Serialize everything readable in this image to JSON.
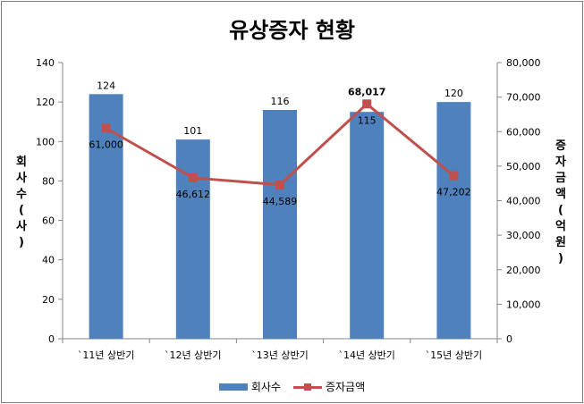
{
  "chart_data": {
    "type": "bar",
    "title": "유상증자 현황",
    "categories": [
      "`11년 상반기",
      "`12년 상반기",
      "`13년 상반기",
      "`14년 상반기",
      "`15년 상반기"
    ],
    "series": [
      {
        "name": "회사수",
        "type": "bar",
        "axis": "left",
        "values": [
          124,
          101,
          116,
          115,
          120
        ],
        "value_labels": [
          "124",
          "101",
          "116",
          "115",
          "120"
        ],
        "color": "#4f81bd"
      },
      {
        "name": "증자금액",
        "type": "line",
        "axis": "right",
        "values": [
          61000,
          46612,
          44589,
          68017,
          47202
        ],
        "value_labels": [
          "61,000",
          "46,612",
          "44,589",
          "68,017",
          "47,202"
        ],
        "color": "#c0504d"
      }
    ],
    "y_left": {
      "label": "회사수(사)",
      "ylim": [
        0,
        140
      ],
      "ticks": [
        "0",
        "20",
        "40",
        "60",
        "80",
        "100",
        "120",
        "140"
      ]
    },
    "y_right": {
      "label": "증자금액(억원)",
      "ylim": [
        0,
        80000
      ],
      "ticks": [
        "0",
        "10,000",
        "20,000",
        "30,000",
        "40,000",
        "50,000",
        "60,000",
        "70,000",
        "80,000"
      ]
    },
    "grid": false,
    "legend_position": "bottom"
  }
}
